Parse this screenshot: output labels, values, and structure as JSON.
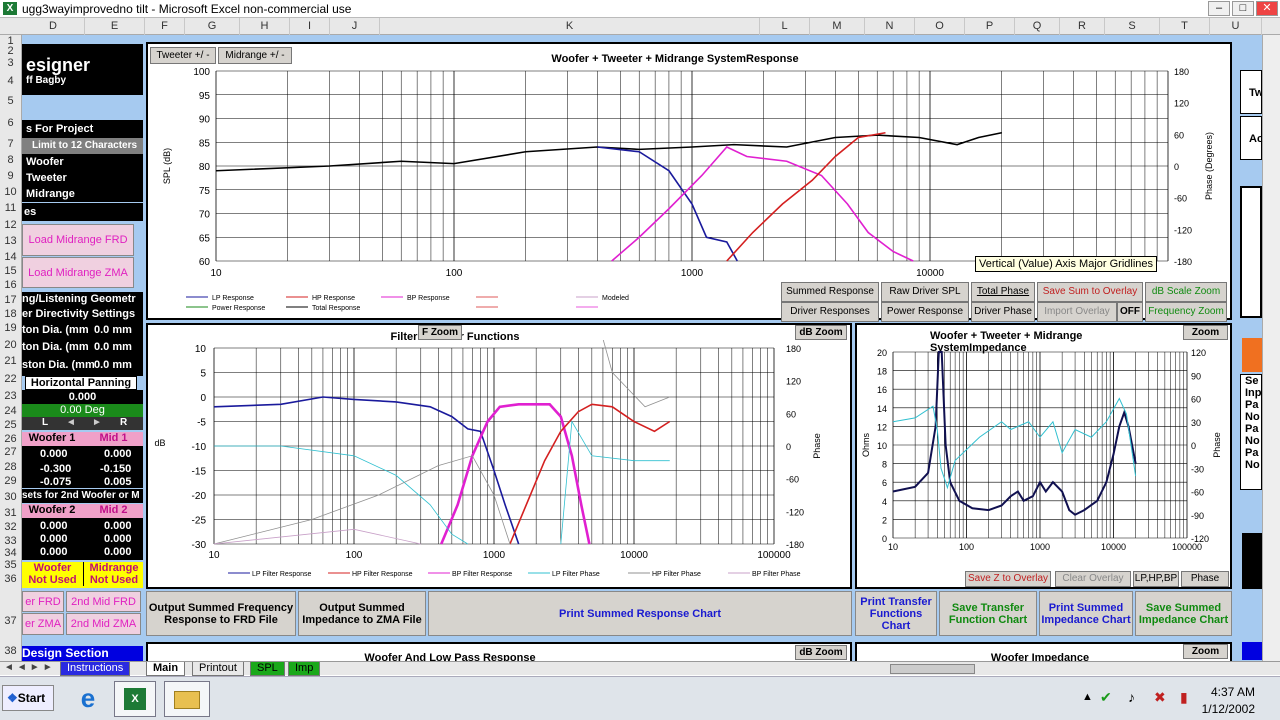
{
  "window": {
    "title": "ugg3wayimprovedno tilt - Microsoft Excel non-commercial use",
    "icon": "excel-icon"
  },
  "columns": [
    "D",
    "E",
    "F",
    "G",
    "H",
    "I",
    "J",
    "K",
    "L",
    "M",
    "N",
    "O",
    "P",
    "Q",
    "R",
    "S",
    "T",
    "U"
  ],
  "rows": [
    "1",
    "2",
    "3",
    "4",
    "5",
    "6",
    "7",
    "8",
    "9",
    "10",
    "11",
    "12",
    "13",
    "14",
    "15",
    "16",
    "17",
    "18",
    "19",
    "20",
    "21",
    "22",
    "23",
    "24",
    "25",
    "26",
    "27",
    "28",
    "29",
    "30",
    "31",
    "32",
    "33",
    "34",
    "35",
    "36",
    "37",
    "38"
  ],
  "left": {
    "designer": "esigner",
    "author": "ff Bagby",
    "project_label": "s For Project",
    "limit_label": "Limit to 12 Characters",
    "woofer": "Woofer",
    "tweeter": "Tweeter",
    "midrange": "Midrange",
    "files": "es",
    "load_frd": "Load Midrange FRD",
    "load_zma": "Load Midrange ZMA",
    "geometry": "ng/Listening Geometr",
    "directivity": "er Directivity Settings",
    "dia1": "ton Dia. (mm",
    "dia1_val": "0.0 mm",
    "dia2": "ton Dia. (mm",
    "dia2_val": "0.0 mm",
    "dia3": "ston Dia. (mm",
    "dia3_val": "0.0 mm",
    "panning": "Horizontal Panning",
    "pan_val": "0.000",
    "pan_deg": "0.00 Deg",
    "pan_l": "L",
    "pan_r": "R",
    "woofer1": "Woofer 1",
    "mid1": "Mid 1",
    "w1": [
      "0.000",
      "-0.300",
      "-0.075"
    ],
    "m1": [
      "0.000",
      "-0.150",
      "0.005"
    ],
    "sets": "sets for 2nd Woofer or M",
    "woofer2": "Woofer 2",
    "mid2": "Mid 2",
    "w2": [
      "0.000",
      "0.000",
      "0.000"
    ],
    "m2": [
      "0.000",
      "0.000",
      "0.000"
    ],
    "woofer_nu": "Woofer",
    "not_used1": "Not Used",
    "midrange_nu": "Midrange",
    "not_used2": "Not Used",
    "frd": "er FRD",
    "mid_frd": "2nd Mid FRD",
    "zma": "er ZMA",
    "mid_zma": "2nd Mid ZMA",
    "design": "Design Section"
  },
  "top_chart": {
    "tab1": "Tweeter +/ -",
    "tab2": "Midrange  +/ -",
    "title": "Woofer + Tweeter + Midrange  SystemResponse",
    "ylabel": "SPL (dB)",
    "y2label": "Phase (Degrees)",
    "yticks": [
      "100",
      "95",
      "90",
      "85",
      "80",
      "75",
      "70",
      "65",
      "60"
    ],
    "y2ticks": [
      "180",
      "120",
      "60",
      "0",
      "-60",
      "-120",
      "-180"
    ],
    "xticks": [
      "10",
      "100",
      "1000",
      "10000"
    ],
    "legend": [
      "LP Response",
      "HP Response",
      "BP Response",
      "Modeled",
      "Power Response",
      "Total Response"
    ],
    "tooltip": "Vertical (Value) Axis Major Gridlines"
  },
  "top_buttons": {
    "summed": "Summed Response",
    "raw": "Raw Driver SPL",
    "total_phase": "Total Phase",
    "save_sum": "Save Sum to Overlay",
    "db_scale": "dB Scale Zoom",
    "driver_resp": "Driver Responses",
    "power": "Power Response",
    "driver_phase": "Driver Phase",
    "import": "Import Overlay",
    "off": "OFF",
    "freq_zoom": "Frequency Zoom"
  },
  "filter_chart": {
    "title": "Filter Transfer Functions",
    "f_zoom": "F Zoom",
    "db_zoom": "dB Zoom",
    "ylabel": "dB",
    "y2label": "Phase",
    "yticks": [
      "10",
      "5",
      "0",
      "-5",
      "-10",
      "-15",
      "-20",
      "-25",
      "-30"
    ],
    "y2ticks": [
      "180",
      "120",
      "60",
      "0",
      "-60",
      "-120",
      "-180"
    ],
    "xticks": [
      "10",
      "100",
      "1000",
      "10000",
      "100000"
    ],
    "legend": [
      "LP Filter Response",
      "HP Filter Response",
      "BP Filter Response",
      "LP Filter Phase",
      "HP Filter Phase",
      "BP Filter Phase"
    ]
  },
  "imp_chart": {
    "title": "Woofer + Tweeter + Midrange  SystemImpedance",
    "zoom": "Zoom",
    "ylabel": "Ohms",
    "y2label": "Phase",
    "yticks": [
      "20",
      "18",
      "16",
      "14",
      "12",
      "10",
      "8",
      "6",
      "4",
      "2",
      "0"
    ],
    "y2ticks": [
      "120",
      "90",
      "60",
      "30",
      "0",
      "-30",
      "-60",
      "-90",
      "-120"
    ],
    "xticks": [
      "10",
      "100",
      "1000",
      "10000",
      "100000"
    ],
    "save_z": "Save Z to Overlay",
    "clear": "Clear Overlay",
    "lphpbp": "LP,HP,BP",
    "phase": "Phase"
  },
  "bottom_buttons": {
    "output_frd": "Output Summed Frequency Response to FRD File",
    "output_zma": "Output Summed Impedance to ZMA File",
    "print_resp": "Print Summed Response Chart",
    "print_tf": "Print Transfer Functions Chart",
    "save_tf": "Save Transfer Function Chart",
    "print_imp": "Print Summed Impedance Chart",
    "save_imp": "Save Summed Impedance Chart"
  },
  "lower": {
    "woofer_lp": "Woofer  And Low Pass Response",
    "db_zoom": "dB Zoom",
    "woofer_imp": "Woofer  Impedance",
    "zoom": "Zoom"
  },
  "right_panel": {
    "tw": "Tw",
    "ac": "Ac",
    "se": "Se",
    "inp": "Inp",
    "pa1": "Pa",
    "no1": "No",
    "pa2": "Pa",
    "no2": "No",
    "pa3": "Pa",
    "no3": "No"
  },
  "tabs": [
    "Instructions",
    "Main",
    "Printout",
    "SPL",
    "Imp"
  ],
  "taskbar": {
    "start": "Start",
    "time": "4:37 AM",
    "date": "1/12/2002"
  },
  "colors": {
    "lp": "#1a1a9c",
    "hp": "#d42020",
    "bp": "#e020d0",
    "total": "#000000",
    "lpphase": "#30c0d0",
    "hpphase": "#909090",
    "bpphase": "#c8a0c8",
    "imp": "#101050",
    "sheet": "#a6caf0"
  }
}
